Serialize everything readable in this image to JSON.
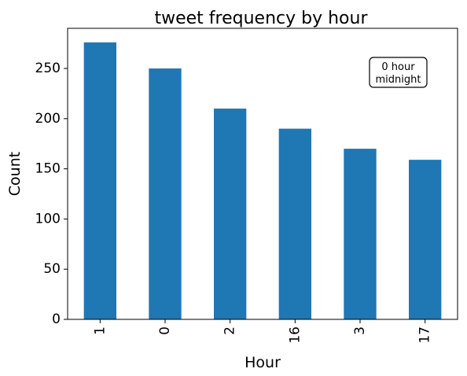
{
  "chart_data": {
    "type": "bar",
    "title": "tweet frequency by hour",
    "xlabel": "Hour",
    "ylabel": "Count",
    "categories": [
      "1",
      "0",
      "2",
      "16",
      "3",
      "17"
    ],
    "values": [
      276,
      250,
      210,
      190,
      170,
      159
    ],
    "ylim": [
      0,
      290
    ],
    "yticks": [
      0,
      50,
      100,
      150,
      200,
      250
    ],
    "bar_color": "#1f77b4",
    "grid": false,
    "annotation": {
      "lines": [
        "0 hour",
        "midnight"
      ],
      "placement": "top-right"
    }
  }
}
